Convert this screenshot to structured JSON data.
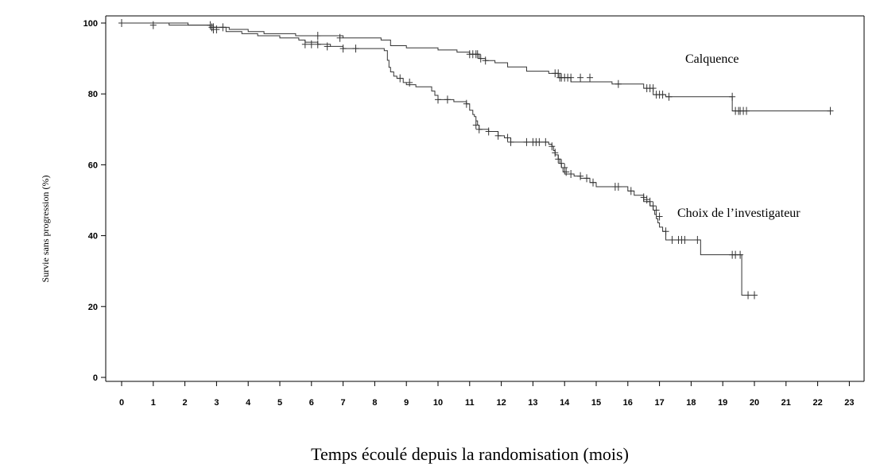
{
  "chart_data": {
    "type": "line",
    "xlabel": "Temps écoulé depuis la randomisation (mois)",
    "ylabel": "Survie sans progression (%)",
    "xlim": [
      0,
      23
    ],
    "ylim": [
      0,
      100
    ],
    "xticks": [
      0,
      1,
      2,
      3,
      4,
      5,
      6,
      7,
      8,
      9,
      10,
      11,
      12,
      13,
      14,
      15,
      16,
      17,
      18,
      19,
      20,
      21,
      22,
      23
    ],
    "yticks": [
      0,
      20,
      40,
      60,
      80,
      100
    ],
    "grid": false,
    "series": [
      {
        "name": "Calquence",
        "step": [
          [
            0,
            100
          ],
          [
            2.1,
            99.4
          ],
          [
            2.8,
            98.8
          ],
          [
            3.4,
            98.2
          ],
          [
            4.0,
            97.6
          ],
          [
            4.5,
            97.0
          ],
          [
            5.5,
            96.4
          ],
          [
            7.0,
            95.8
          ],
          [
            8.2,
            95.2
          ],
          [
            8.5,
            93.6
          ],
          [
            9.0,
            93.0
          ],
          [
            10.0,
            92.4
          ],
          [
            10.6,
            91.8
          ],
          [
            11.0,
            91.2
          ],
          [
            11.3,
            90.0
          ],
          [
            11.5,
            89.4
          ],
          [
            11.8,
            88.8
          ],
          [
            12.2,
            87.6
          ],
          [
            12.8,
            86.4
          ],
          [
            13.5,
            85.8
          ],
          [
            13.8,
            84.6
          ],
          [
            14.2,
            83.4
          ],
          [
            15.5,
            82.8
          ],
          [
            16.5,
            81.6
          ],
          [
            16.8,
            79.8
          ],
          [
            17.2,
            79.2
          ],
          [
            19.3,
            75.2
          ],
          [
            22.4,
            75.2
          ]
        ],
        "censored": [
          [
            0,
            100
          ],
          [
            1,
            99.4
          ],
          [
            2.8,
            99.4
          ],
          [
            2.85,
            98.8
          ],
          [
            2.9,
            98.2
          ],
          [
            3.0,
            98.2
          ],
          [
            3.2,
            98.8
          ],
          [
            6.2,
            96.4
          ],
          [
            6.9,
            95.8
          ],
          [
            11.0,
            91.2
          ],
          [
            11.1,
            91.2
          ],
          [
            11.2,
            91.2
          ],
          [
            11.25,
            91.2
          ],
          [
            11.35,
            90.0
          ],
          [
            11.5,
            89.4
          ],
          [
            13.7,
            85.8
          ],
          [
            13.8,
            85.8
          ],
          [
            13.85,
            84.6
          ],
          [
            13.9,
            84.6
          ],
          [
            14.0,
            84.6
          ],
          [
            14.1,
            84.6
          ],
          [
            14.2,
            84.6
          ],
          [
            14.5,
            84.6
          ],
          [
            14.8,
            84.6
          ],
          [
            15.7,
            82.8
          ],
          [
            16.6,
            81.6
          ],
          [
            16.7,
            81.6
          ],
          [
            16.8,
            81.6
          ],
          [
            16.9,
            79.8
          ],
          [
            17.0,
            79.8
          ],
          [
            17.1,
            79.8
          ],
          [
            17.3,
            79.2
          ],
          [
            19.3,
            79.2
          ],
          [
            19.4,
            75.2
          ],
          [
            19.5,
            75.2
          ],
          [
            19.55,
            75.2
          ],
          [
            19.65,
            75.2
          ],
          [
            19.75,
            75.2
          ],
          [
            22.4,
            75.2
          ]
        ]
      },
      {
        "name": "Choix de l’investigateur",
        "step": [
          [
            0,
            100
          ],
          [
            1.5,
            99.4
          ],
          [
            2.8,
            98.8
          ],
          [
            3.3,
            97.6
          ],
          [
            3.8,
            97.0
          ],
          [
            4.3,
            96.4
          ],
          [
            5.0,
            95.8
          ],
          [
            5.6,
            95.2
          ],
          [
            5.8,
            94.6
          ],
          [
            6.2,
            94.0
          ],
          [
            6.6,
            93.4
          ],
          [
            7.0,
            92.8
          ],
          [
            8.3,
            92.2
          ],
          [
            8.4,
            89.5
          ],
          [
            8.45,
            87.5
          ],
          [
            8.5,
            86.2
          ],
          [
            8.6,
            85.0
          ],
          [
            8.7,
            84.4
          ],
          [
            8.9,
            83.2
          ],
          [
            9.0,
            82.6
          ],
          [
            9.3,
            82.0
          ],
          [
            9.8,
            80.8
          ],
          [
            9.9,
            79.6
          ],
          [
            10.0,
            78.4
          ],
          [
            10.5,
            77.8
          ],
          [
            10.9,
            77.2
          ],
          [
            11.0,
            75.4
          ],
          [
            11.1,
            74.2
          ],
          [
            11.15,
            73.6
          ],
          [
            11.2,
            72.4
          ],
          [
            11.25,
            71.2
          ],
          [
            11.3,
            70.0
          ],
          [
            11.6,
            69.4
          ],
          [
            11.9,
            68.2
          ],
          [
            12.1,
            67.6
          ],
          [
            12.3,
            66.4
          ],
          [
            13.5,
            65.8
          ],
          [
            13.6,
            65.2
          ],
          [
            13.65,
            64.0
          ],
          [
            13.7,
            62.8
          ],
          [
            13.8,
            61.6
          ],
          [
            13.85,
            60.4
          ],
          [
            13.9,
            59.2
          ],
          [
            13.95,
            58.0
          ],
          [
            14.0,
            57.4
          ],
          [
            14.3,
            56.8
          ],
          [
            14.5,
            56.2
          ],
          [
            14.8,
            55.0
          ],
          [
            15.0,
            53.8
          ],
          [
            16.0,
            52.6
          ],
          [
            16.2,
            51.4
          ],
          [
            16.5,
            49.6
          ],
          [
            16.7,
            48.4
          ],
          [
            16.8,
            47.2
          ],
          [
            16.85,
            46.0
          ],
          [
            16.9,
            44.8
          ],
          [
            16.95,
            43.6
          ],
          [
            17.0,
            42.4
          ],
          [
            17.1,
            41.2
          ],
          [
            17.2,
            38.8
          ],
          [
            18.3,
            34.6
          ],
          [
            19.5,
            34.6
          ],
          [
            19.6,
            23.2
          ],
          [
            20.0,
            23.2
          ]
        ],
        "censored": [
          [
            2.9,
            98.8
          ],
          [
            5.8,
            94.0
          ],
          [
            6.0,
            94.0
          ],
          [
            6.2,
            94.0
          ],
          [
            6.5,
            93.4
          ],
          [
            7.0,
            92.8
          ],
          [
            7.4,
            92.8
          ],
          [
            8.8,
            84.4
          ],
          [
            9.1,
            83.2
          ],
          [
            10.0,
            78.4
          ],
          [
            10.3,
            78.4
          ],
          [
            10.9,
            77.2
          ],
          [
            11.2,
            71.2
          ],
          [
            11.3,
            70.0
          ],
          [
            11.6,
            69.4
          ],
          [
            11.9,
            68.2
          ],
          [
            12.2,
            67.6
          ],
          [
            12.3,
            66.4
          ],
          [
            12.8,
            66.4
          ],
          [
            13.0,
            66.4
          ],
          [
            13.1,
            66.4
          ],
          [
            13.2,
            66.4
          ],
          [
            13.4,
            66.4
          ],
          [
            13.6,
            65.2
          ],
          [
            13.7,
            63.4
          ],
          [
            13.8,
            61.6
          ],
          [
            13.9,
            60.4
          ],
          [
            14.0,
            59.2
          ],
          [
            14.05,
            58.0
          ],
          [
            14.2,
            57.4
          ],
          [
            14.5,
            56.8
          ],
          [
            14.7,
            56.2
          ],
          [
            14.9,
            55.0
          ],
          [
            15.6,
            53.8
          ],
          [
            15.7,
            53.8
          ],
          [
            16.1,
            52.6
          ],
          [
            16.5,
            50.8
          ],
          [
            16.6,
            50.2
          ],
          [
            16.7,
            49.6
          ],
          [
            16.8,
            48.4
          ],
          [
            16.9,
            47.2
          ],
          [
            17.0,
            45.4
          ],
          [
            17.2,
            41.2
          ],
          [
            17.4,
            38.8
          ],
          [
            17.6,
            38.8
          ],
          [
            17.7,
            38.8
          ],
          [
            17.8,
            38.8
          ],
          [
            18.2,
            38.8
          ],
          [
            19.3,
            34.6
          ],
          [
            19.4,
            34.6
          ],
          [
            19.55,
            34.6
          ],
          [
            19.8,
            23.2
          ],
          [
            20.0,
            23.2
          ]
        ]
      }
    ]
  }
}
